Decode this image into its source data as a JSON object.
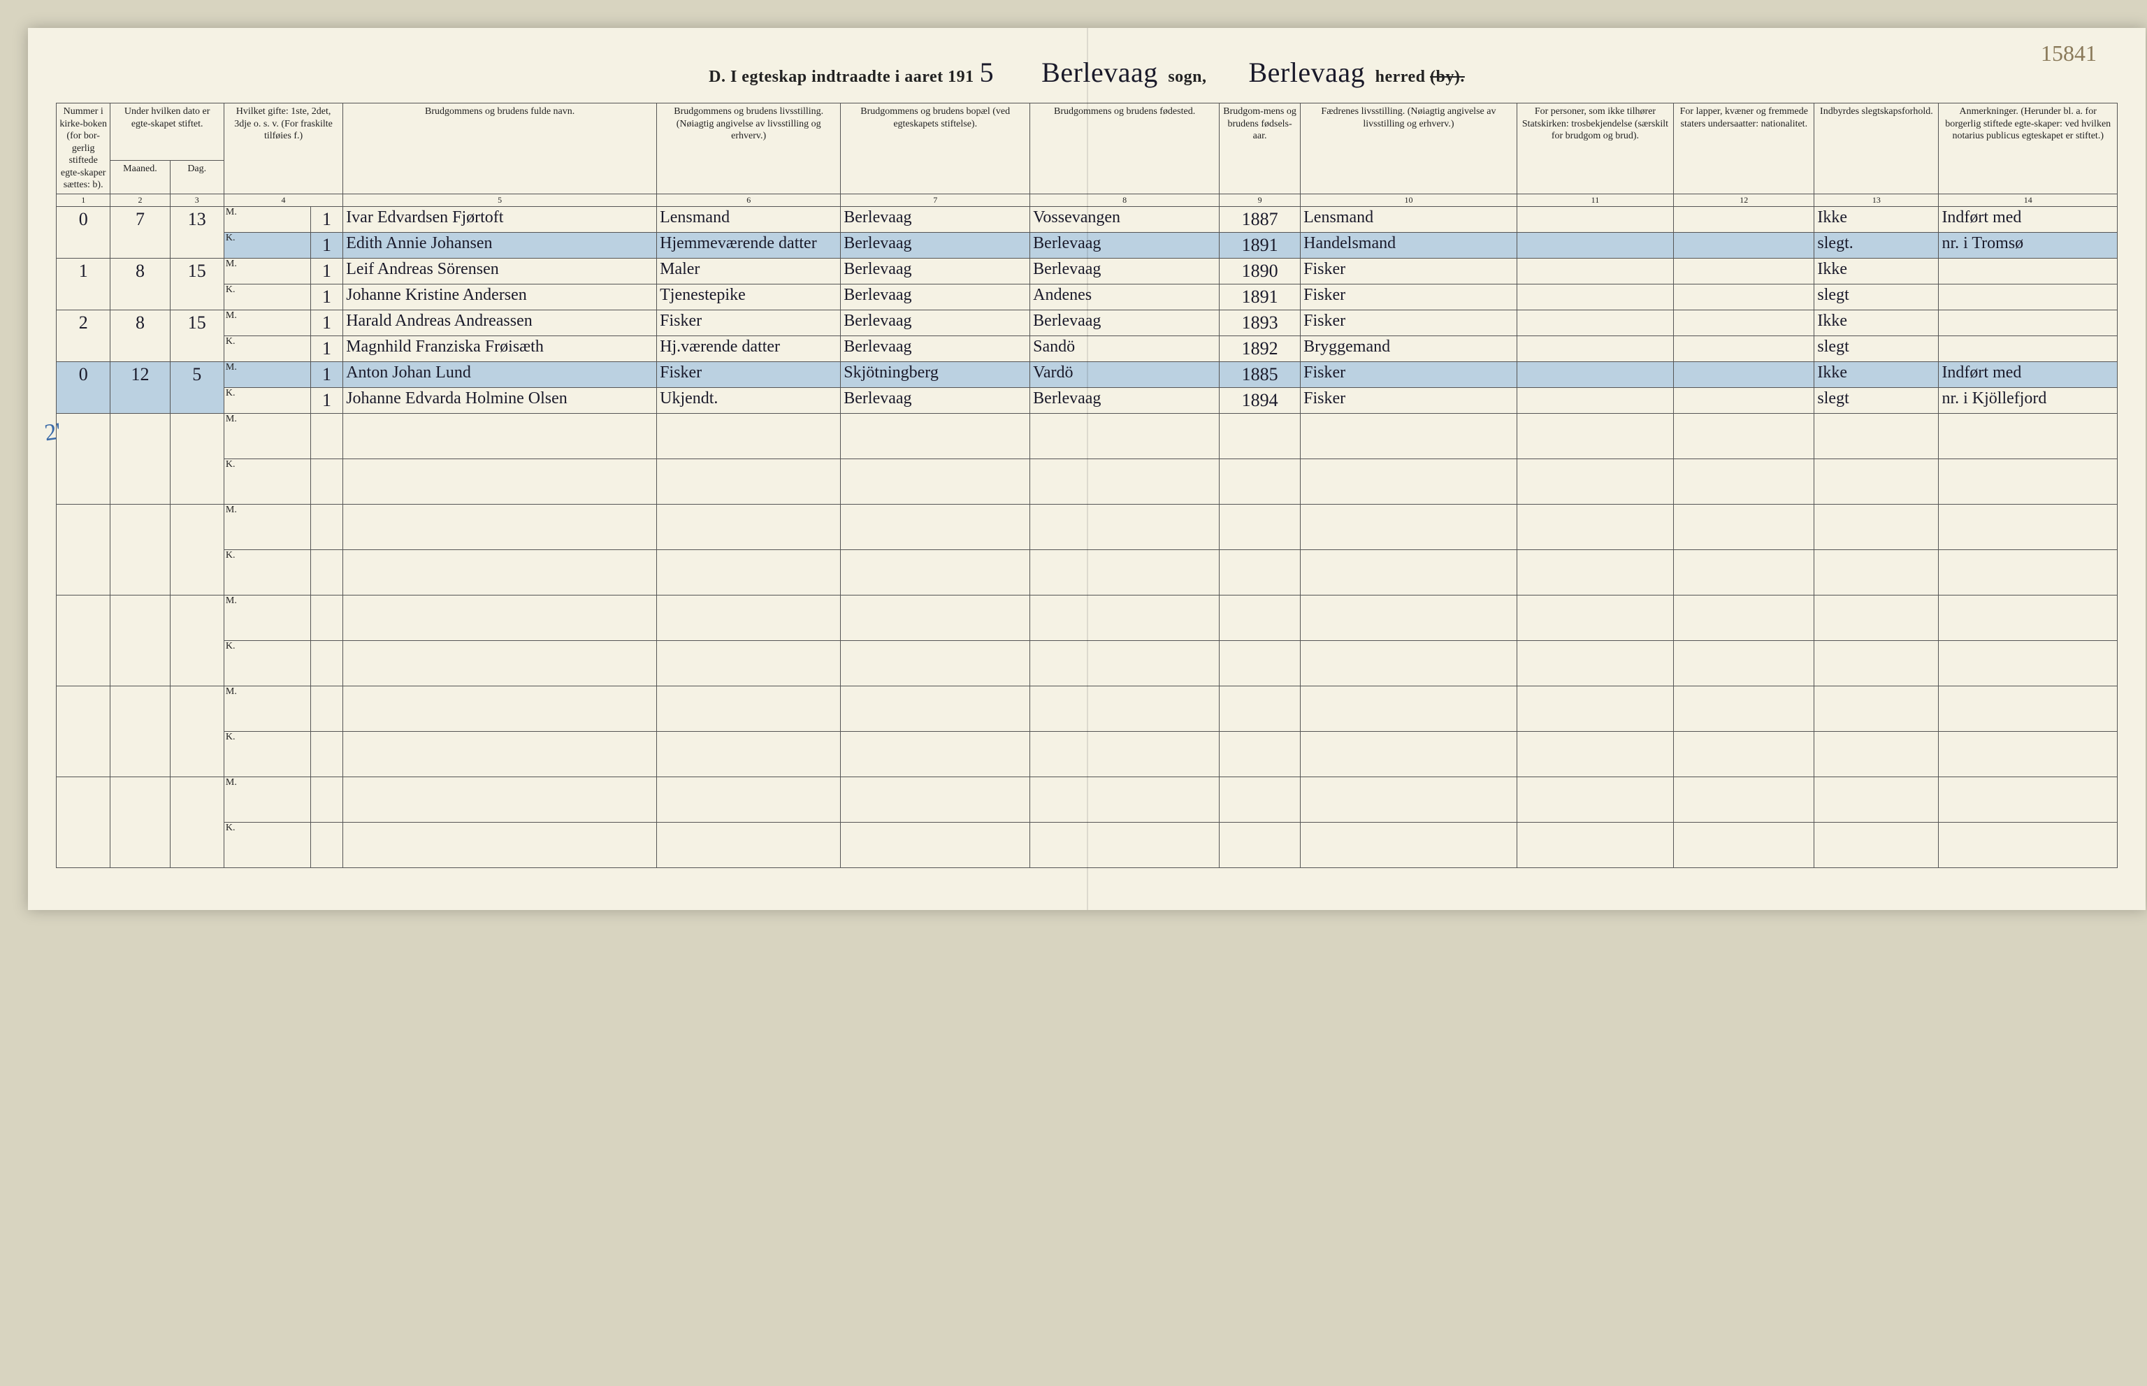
{
  "page_number_top_right": "15841",
  "header": {
    "prefix": "D.  I egteskap indtraadte i aaret 191",
    "year_digit": "5",
    "sogn_label": "sogn,",
    "sogn_value": "Berlevaag",
    "herred_label": "herred",
    "herred_value": "Berlevaag",
    "by_label_struck": "(by)."
  },
  "columns": {
    "c1": "Nummer i kirke-boken (for bor-gerlig stiftede egte-skaper sættes: b).",
    "c2_3_group": "Under hvilken dato er egte-skapet stiftet.",
    "c2": "Maaned.",
    "c3": "Dag.",
    "c4": "Hvilket gifte: 1ste, 2det, 3dje o. s. v. (For fraskilte tilføies f.)",
    "c5": "Brudgommens og brudens fulde navn.",
    "c6": "Brudgommens og brudens livsstilling. (Nøiagtig angivelse av livsstilling og erhverv.)",
    "c7": "Brudgommens og brudens bopæl (ved egteskapets stiftelse).",
    "c8": "Brudgommens og brudens fødested.",
    "c9": "Brudgom-mens og brudens fødsels-aar.",
    "c10": "Fædrenes livsstilling. (Nøiagtig angivelse av livsstilling og erhverv.)",
    "c11": "For personer, som ikke tilhører Statskirken: trosbekjendelse (særskilt for brudgom og brud).",
    "c12": "For lapper, kvæner og fremmede staters undersaatter: nationalitet.",
    "c13": "Indbyrdes slegtskapsforhold.",
    "c14": "Anmerkninger. (Herunder bl. a. for borgerlig stiftede egte-skaper: ved hvilken notarius publicus egteskapet er stiftet.)"
  },
  "colnums": [
    "1",
    "2",
    "3",
    "4",
    "5",
    "6",
    "7",
    "8",
    "9",
    "10",
    "11",
    "12",
    "13",
    "14"
  ],
  "mk_labels": {
    "m": "M.",
    "k": "K."
  },
  "side_mark": "2'",
  "rows": [
    {
      "num": "0",
      "maaned": "7",
      "dag": "13",
      "m": {
        "gifte": "1",
        "navn": "Ivar Edvardsen Fjørtoft",
        "stilling": "Lensmand",
        "bopael": "Berlevaag",
        "fodested": "Vossevangen",
        "aar": "1887",
        "far": "Lensmand",
        "s13": "Ikke",
        "s14": "Indført med"
      },
      "k": {
        "gifte": "1",
        "navn": "Edith Annie Johansen",
        "stilling": "Hjemmeværende datter",
        "bopael": "Berlevaag",
        "fodested": "Berlevaag",
        "aar": "1891",
        "far": "Handelsmand",
        "s13": "slegt.",
        "s14": "nr. i Tromsø"
      },
      "highlight": "k"
    },
    {
      "num": "1",
      "maaned": "8",
      "dag": "15",
      "m": {
        "gifte": "1",
        "navn": "Leif Andreas Sörensen",
        "stilling": "Maler",
        "bopael": "Berlevaag",
        "fodested": "Berlevaag",
        "aar": "1890",
        "far": "Fisker",
        "s13": "Ikke",
        "s14": ""
      },
      "k": {
        "gifte": "1",
        "navn": "Johanne Kristine Andersen",
        "stilling": "Tjenestepike",
        "bopael": "Berlevaag",
        "fodested": "Andenes",
        "aar": "1891",
        "far": "Fisker",
        "s13": "slegt",
        "s14": ""
      }
    },
    {
      "num": "2",
      "maaned": "8",
      "dag": "15",
      "m": {
        "gifte": "1",
        "navn": "Harald Andreas Andreassen",
        "stilling": "Fisker",
        "bopael": "Berlevaag",
        "fodested": "Berlevaag",
        "aar": "1893",
        "far": "Fisker",
        "s13": "Ikke",
        "s14": ""
      },
      "k": {
        "gifte": "1",
        "navn": "Magnhild Franziska Frøisæth",
        "stilling": "Hj.værende datter",
        "bopael": "Berlevaag",
        "fodested": "Sandö",
        "aar": "1892",
        "far": "Bryggemand",
        "s13": "slegt",
        "s14": ""
      }
    },
    {
      "num": "0",
      "maaned": "12",
      "dag": "5",
      "m": {
        "gifte": "1",
        "navn": "Anton Johan Lund",
        "stilling": "Fisker",
        "bopael": "Skjötningberg",
        "fodested": "Vardö",
        "aar": "1885",
        "far": "Fisker",
        "s13": "Ikke",
        "s14": "Indført med"
      },
      "k": {
        "gifte": "1",
        "navn": "Johanne Edvarda Holmine Olsen",
        "stilling": "Ukjendt.",
        "bopael": "Berlevaag",
        "fodested": "Berlevaag",
        "aar": "1894",
        "far": "Fisker",
        "s13": "slegt",
        "s14": "nr. i Kjöllefjord"
      },
      "highlight": "m"
    }
  ],
  "empty_pairs": 5,
  "colors": {
    "paper": "#f5f2e4",
    "ink": "#1a1a2a",
    "blue_highlight": "rgba(80,150,220,0.35)",
    "border": "#555"
  }
}
